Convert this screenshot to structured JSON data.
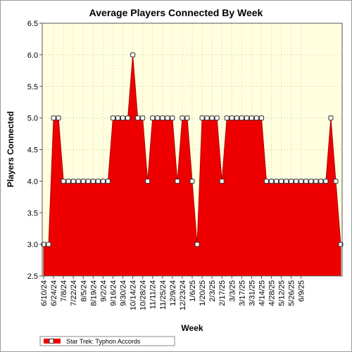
{
  "chart_data": {
    "type": "area",
    "title": "Average Players Connected By Week",
    "xlabel": "Week",
    "ylabel": "Players Connected",
    "ylim": [
      2.5,
      6.5
    ],
    "yticks": [
      "2.5",
      "3.0",
      "3.5",
      "4.0",
      "4.5",
      "5.0",
      "5.5",
      "6.0",
      "6.5"
    ],
    "grid": true,
    "legend_position": "bottom-left",
    "x_tick_labels": [
      "6/10/24",
      "6/24/24",
      "7/8/24",
      "7/22/24",
      "8/5/24",
      "8/19/24",
      "9/2/24",
      "9/16/24",
      "9/30/24",
      "10/14/24",
      "10/28/24",
      "11/11/24",
      "11/25/24",
      "12/9/24",
      "12/23/24",
      "1/6/25",
      "1/20/25",
      "2/3/25",
      "2/17/25",
      "3/3/25",
      "3/17/25",
      "3/31/25",
      "4/14/25",
      "4/28/25",
      "5/12/25",
      "5/26/25",
      "6/9/25"
    ],
    "series": [
      {
        "name": "Star Trek: Typhon Accords",
        "color": "#ee0000",
        "values": [
          3,
          3,
          5,
          5,
          4,
          4,
          4,
          4,
          4,
          4,
          4,
          4,
          4,
          4,
          5,
          5,
          5,
          5,
          6,
          5,
          5,
          4,
          5,
          5,
          5,
          5,
          5,
          4,
          5,
          5,
          4,
          3,
          5,
          5,
          5,
          5,
          4,
          5,
          5,
          5,
          5,
          5,
          5,
          5,
          5,
          4,
          4,
          4,
          4,
          4,
          4,
          4,
          4,
          4,
          4,
          4,
          4,
          4,
          5,
          4,
          3
        ]
      }
    ]
  }
}
